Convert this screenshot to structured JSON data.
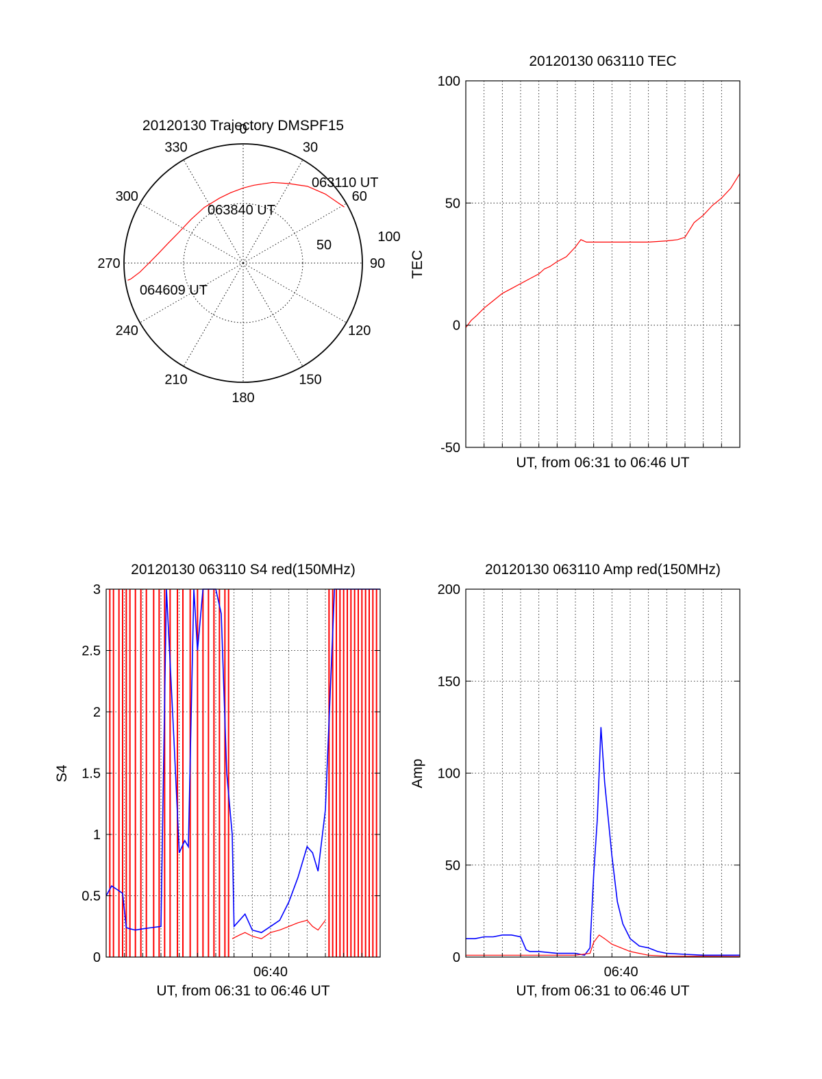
{
  "colors": {
    "red": "#ff0000",
    "blue": "#0000ff",
    "axis": "#000000",
    "grid": "#000000",
    "background": "#ffffff"
  },
  "chart_data": [
    {
      "id": "trajectory",
      "type": "polar",
      "title": "20120130 Trajectory DMSPF15",
      "angle_labels": [
        "0",
        "30",
        "60",
        "90",
        "120",
        "150",
        "180",
        "210",
        "240",
        "270",
        "300",
        "330"
      ],
      "radial_labels": [
        "50",
        "100"
      ],
      "annotations": [
        "063110 UT",
        "063840 UT",
        "064609 UT"
      ],
      "series": [
        {
          "color": "red",
          "azimuth_deg": [
            61,
            50,
            40,
            30,
            20,
            8,
            0,
            350,
            340,
            325,
            310,
            295,
            285,
            276,
            270,
            265,
            262,
            261.5
          ],
          "distance": [
            97,
            90,
            84,
            77,
            72,
            66,
            63,
            60,
            58,
            57,
            57,
            60,
            65,
            72,
            79,
            87,
            95,
            98
          ]
        }
      ]
    },
    {
      "id": "tec",
      "type": "line",
      "title": "20120130 063110 TEC",
      "xlabel": "UT, from 06:31 to 06:46 UT",
      "ylabel": "TEC",
      "ylim": [
        -50,
        100
      ],
      "yticks": [
        "-50",
        "0",
        "50",
        "100"
      ],
      "xlim_minutes": [
        0,
        15.0
      ],
      "grid": true,
      "series": [
        {
          "color": "red",
          "x_minutes": [
            0.0,
            0.3,
            0.6,
            1.0,
            1.5,
            2.0,
            2.5,
            3.0,
            3.5,
            4.0,
            4.3,
            4.6,
            5.0,
            5.5,
            6.0,
            6.3,
            6.6,
            7.0,
            8.0,
            9.0,
            10.0,
            11.0,
            11.6,
            12.0,
            12.5,
            13.0,
            13.5,
            14.0,
            14.5,
            15.0
          ],
          "y": [
            -1,
            2,
            4,
            7,
            10,
            13,
            15,
            17,
            19,
            21,
            23,
            24,
            26,
            28,
            32,
            35,
            34,
            34,
            34,
            34,
            34,
            34.5,
            35,
            36,
            42,
            45,
            49,
            52,
            56,
            62
          ]
        }
      ]
    },
    {
      "id": "s4",
      "type": "line",
      "title": "20120130 063110 S4 red(150MHz)",
      "xlabel": "UT, from 06:31 to 06:46 UT",
      "ylabel": "S4",
      "ylim": [
        0,
        3
      ],
      "yticks": [
        "0",
        "0.5",
        "1",
        "1.5",
        "2",
        "2.5",
        "3"
      ],
      "xtick_labels": [
        "06:40"
      ],
      "xtick_minutes": [
        9
      ],
      "xlim_minutes": [
        0,
        15.0
      ],
      "grid": true,
      "series": [
        {
          "color": "blue",
          "x_minutes": [
            0.0,
            0.3,
            0.6,
            0.9,
            1.1,
            1.3,
            1.6,
            2.0,
            2.5,
            3.0,
            3.3,
            3.7,
            4.0,
            4.3,
            4.5,
            4.8,
            5.0,
            5.3,
            5.6,
            6.0,
            6.3,
            6.6,
            6.9,
            7.0,
            7.3,
            7.6,
            8.0,
            8.5,
            9.0,
            9.5,
            10.0,
            10.5,
            11.0,
            11.3,
            11.6,
            12.0,
            12.5,
            13.0,
            13.5,
            14.0,
            14.5,
            15.0
          ],
          "y": [
            0.5,
            0.58,
            0.55,
            0.52,
            0.24,
            0.23,
            0.22,
            0.23,
            0.24,
            0.25,
            3.0,
            1.8,
            0.85,
            0.95,
            0.9,
            3.0,
            2.5,
            3.0,
            3.0,
            3.0,
            2.8,
            1.5,
            1.0,
            0.25,
            0.3,
            0.35,
            0.22,
            0.2,
            0.25,
            0.3,
            0.45,
            0.65,
            0.9,
            0.85,
            0.7,
            1.2,
            3.0,
            3.0,
            3.0,
            3.0,
            3.0,
            3.0
          ]
        },
        {
          "color": "red",
          "x_minutes": [
            6.9,
            7.3,
            7.6,
            8.0,
            8.5,
            9.0,
            9.5,
            10.0,
            10.5,
            11.0,
            11.3,
            11.6,
            12.0
          ],
          "y": [
            0.15,
            0.18,
            0.2,
            0.17,
            0.15,
            0.2,
            0.22,
            0.25,
            0.28,
            0.3,
            0.25,
            0.22,
            0.3
          ]
        }
      ],
      "red_spikes_minutes": [
        0.2,
        0.4,
        0.7,
        0.9,
        1.1,
        1.3,
        1.6,
        1.9,
        2.2,
        2.6,
        2.9,
        3.2,
        3.5,
        3.9,
        4.2,
        4.6,
        5.0,
        5.3,
        5.6,
        5.9,
        6.2,
        6.5,
        6.7,
        12.2,
        12.4,
        12.6,
        12.8,
        13.0,
        13.2,
        13.4,
        13.6,
        13.8,
        14.0,
        14.2,
        14.4,
        14.6,
        14.8
      ]
    },
    {
      "id": "amp",
      "type": "line",
      "title": "20120130 063110 Amp red(150MHz)",
      "xlabel": "UT, from 06:31 to 06:46 UT",
      "ylabel": "Amp",
      "ylim": [
        0,
        200
      ],
      "yticks": [
        "0",
        "50",
        "100",
        "150",
        "200"
      ],
      "xtick_labels": [
        "06:40"
      ],
      "xtick_minutes": [
        8.5
      ],
      "xlim_minutes": [
        0,
        15.0
      ],
      "grid": true,
      "series": [
        {
          "color": "blue",
          "x_minutes": [
            0.0,
            0.5,
            1.0,
            1.5,
            2.0,
            2.5,
            3.0,
            3.3,
            3.5,
            4.0,
            5.0,
            6.0,
            6.5,
            6.8,
            7.0,
            7.2,
            7.4,
            7.6,
            7.8,
            8.0,
            8.3,
            8.6,
            9.0,
            9.5,
            10.0,
            10.5,
            11.0,
            12.0,
            13.0,
            14.0,
            15.0
          ],
          "y": [
            10,
            10,
            11,
            11,
            12,
            12,
            11,
            4,
            3,
            3,
            2,
            2,
            1,
            5,
            45,
            75,
            125,
            95,
            75,
            55,
            30,
            18,
            10,
            6,
            5,
            3,
            2,
            1.5,
            1,
            1,
            1
          ]
        },
        {
          "color": "red",
          "x_minutes": [
            0.0,
            1.0,
            2.0,
            3.0,
            4.0,
            5.0,
            6.0,
            6.8,
            7.0,
            7.3,
            7.6,
            8.0,
            8.5,
            9.0,
            9.5,
            10.0,
            11.0,
            15.0
          ],
          "y": [
            1,
            1,
            1,
            1,
            1,
            1,
            1,
            2,
            8,
            12,
            10,
            7,
            5,
            3,
            2,
            1,
            0.5,
            0.3
          ]
        }
      ]
    }
  ]
}
